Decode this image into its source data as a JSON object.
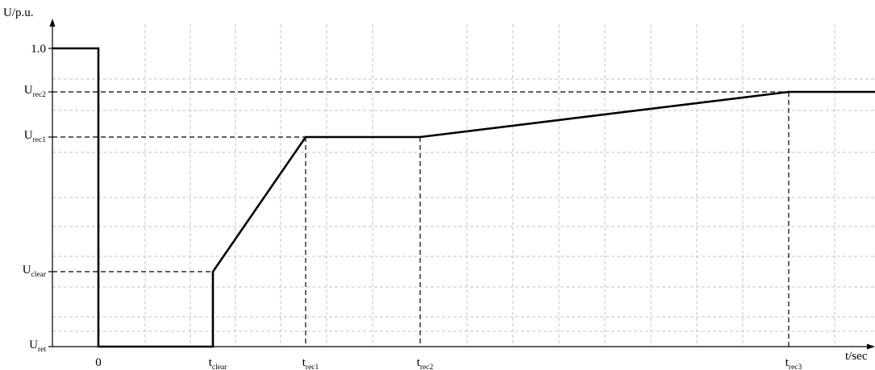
{
  "chart_data": {
    "type": "line",
    "title": "",
    "xlabel": "t/sec",
    "ylabel": "U/p.u.",
    "grid": true,
    "x_ticks": [
      {
        "key": "t0",
        "main": "0",
        "sub": ""
      },
      {
        "key": "t_clear",
        "main": "t",
        "sub": "clear"
      },
      {
        "key": "t_rec1",
        "main": "t",
        "sub": "rec1"
      },
      {
        "key": "t_rec2",
        "main": "t",
        "sub": "rec2"
      },
      {
        "key": "t_rec3",
        "main": "t",
        "sub": "rec3"
      }
    ],
    "y_ticks": [
      {
        "key": "U_ret",
        "main": "U",
        "sub": "ret"
      },
      {
        "key": "U_clear",
        "main": "U",
        "sub": "clear"
      },
      {
        "key": "U_rec1",
        "main": "U",
        "sub": "rec1"
      },
      {
        "key": "U_rec2",
        "main": "U",
        "sub": "rec2"
      },
      {
        "key": "U_1",
        "main": "1.0",
        "sub": ""
      }
    ],
    "series": [
      {
        "points": [
          {
            "x": "start",
            "y": "U_1"
          },
          {
            "x": "t0",
            "y": "U_1"
          },
          {
            "x": "t0",
            "y": "U_ret"
          },
          {
            "x": "t_clear",
            "y": "U_ret"
          },
          {
            "x": "t_clear",
            "y": "U_clear"
          },
          {
            "x": "t_rec1",
            "y": "U_rec1"
          },
          {
            "x": "t_rec2",
            "y": "U_rec1"
          },
          {
            "x": "t_rec3",
            "y": "U_rec2"
          },
          {
            "x": "end",
            "y": "U_rec2"
          }
        ]
      }
    ],
    "guides": [
      {
        "from": {
          "x": "axis",
          "y": "U_clear"
        },
        "to": {
          "x": "t_clear",
          "y": "U_clear"
        }
      },
      {
        "from": {
          "x": "axis",
          "y": "U_rec1"
        },
        "to": {
          "x": "t_rec1",
          "y": "U_rec1"
        }
      },
      {
        "from": {
          "x": "axis",
          "y": "U_rec2"
        },
        "to": {
          "x": "t_rec3",
          "y": "U_rec2"
        }
      },
      {
        "from": {
          "x": "t_rec1",
          "y": "U_rec1"
        },
        "to": {
          "x": "t_rec1",
          "y": "U_ret"
        }
      },
      {
        "from": {
          "x": "t_rec2",
          "y": "U_rec1"
        },
        "to": {
          "x": "t_rec2",
          "y": "U_ret"
        }
      },
      {
        "from": {
          "x": "t_rec3",
          "y": "U_rec2"
        },
        "to": {
          "x": "t_rec3",
          "y": "U_ret"
        }
      }
    ]
  }
}
